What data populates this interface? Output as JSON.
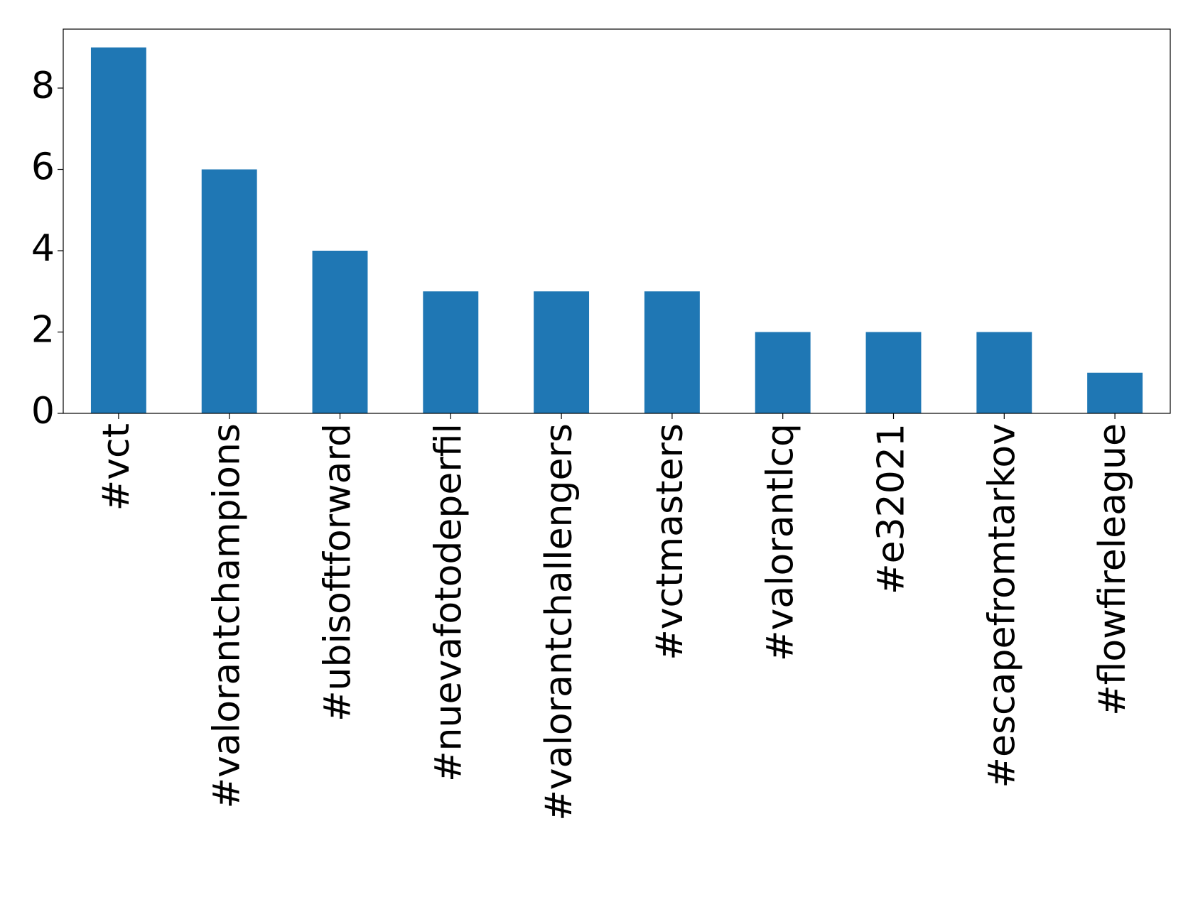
{
  "chart_data": {
    "type": "bar",
    "categories": [
      "#vct",
      "#valorantchampions",
      "#ubisoftforward",
      "#nuevafotodeperfil",
      "#valorantchallengers",
      "#vctmasters",
      "#valorantlcq",
      "#e32021",
      "#escapefromtarkov",
      "#flowfireleague"
    ],
    "values": [
      9,
      6,
      4,
      3,
      3,
      3,
      2,
      2,
      2,
      1
    ],
    "color": "#1f77b4",
    "ylim": [
      0,
      9.45
    ],
    "yticks": [
      0,
      2,
      4,
      6,
      8
    ],
    "grid": false
  }
}
